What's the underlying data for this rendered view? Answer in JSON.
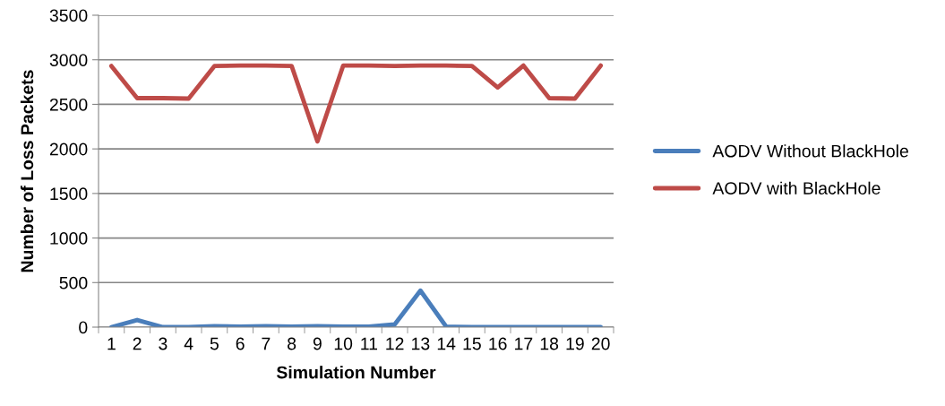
{
  "chart_data": {
    "type": "line",
    "xlabel": "Simulation Number",
    "ylabel": "Number of Loss Packets",
    "categories": [
      "1",
      "2",
      "3",
      "4",
      "5",
      "6",
      "7",
      "8",
      "9",
      "10",
      "11",
      "12",
      "13",
      "14",
      "15",
      "16",
      "17",
      "18",
      "19",
      "20"
    ],
    "series": [
      {
        "name": "AODV Without BlackHole",
        "color": "#4a7ebb",
        "values": [
          0,
          80,
          0,
          0,
          10,
          5,
          10,
          5,
          10,
          5,
          5,
          30,
          410,
          5,
          0,
          0,
          0,
          0,
          0,
          0
        ]
      },
      {
        "name": "AODV with BlackHole",
        "color": "#be4b48",
        "values": [
          2930,
          2570,
          2570,
          2565,
          2930,
          2935,
          2935,
          2930,
          2085,
          2935,
          2935,
          2930,
          2935,
          2935,
          2930,
          2690,
          2935,
          2570,
          2565,
          2935
        ]
      }
    ],
    "ylim": [
      0,
      3500
    ],
    "yticks": [
      0,
      500,
      1000,
      1500,
      2000,
      2500,
      3000,
      3500
    ],
    "grid": "y",
    "legend": "right",
    "marker": "none",
    "line_style": "solid"
  }
}
